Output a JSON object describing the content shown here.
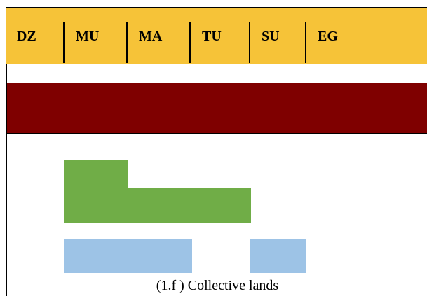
{
  "header": {
    "columns": [
      "DZ",
      "MU",
      "MA",
      "TU",
      "SU",
      "EG"
    ]
  },
  "caption": "(1.f ) Collective lands"
}
